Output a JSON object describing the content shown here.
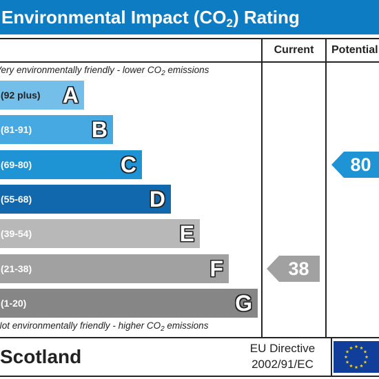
{
  "header": {
    "title_before": "Environmental Impact (CO",
    "title_sub": "2",
    "title_after": ") Rating"
  },
  "columns": {
    "current": "Current",
    "potential": "Potential"
  },
  "top_note": {
    "before": "Very environmentally friendly - lower CO",
    "sub": "2",
    "after": " emissions"
  },
  "bottom_note": {
    "before": "Not environmentally friendly - higher CO",
    "sub": "2",
    "after": " emissions"
  },
  "footer": {
    "country": "Scotland",
    "directive_line1": "EU Directive",
    "directive_line2": "2002/91/EC",
    "flag_icon": "eu-flag-icon"
  },
  "chart_data": {
    "type": "bar",
    "title": "Environmental Impact (CO2) Rating",
    "bands": [
      {
        "letter": "A",
        "range": "(92 plus)",
        "color": "#74bfea"
      },
      {
        "letter": "B",
        "range": "(81-91)",
        "color": "#47a9e2"
      },
      {
        "letter": "C",
        "range": "(69-80)",
        "color": "#1f94d4"
      },
      {
        "letter": "D",
        "range": "(55-68)",
        "color": "#1168ac"
      },
      {
        "letter": "E",
        "range": "(39-54)",
        "color": "#b8b8b8"
      },
      {
        "letter": "F",
        "range": "(21-38)",
        "color": "#a1a1a1"
      },
      {
        "letter": "G",
        "range": "(1-20)",
        "color": "#868686"
      }
    ],
    "current": {
      "value": 38,
      "band": "F",
      "color": "#a1a1a1"
    },
    "potential": {
      "value": 80,
      "band": "C",
      "color": "#1f94d4"
    }
  }
}
